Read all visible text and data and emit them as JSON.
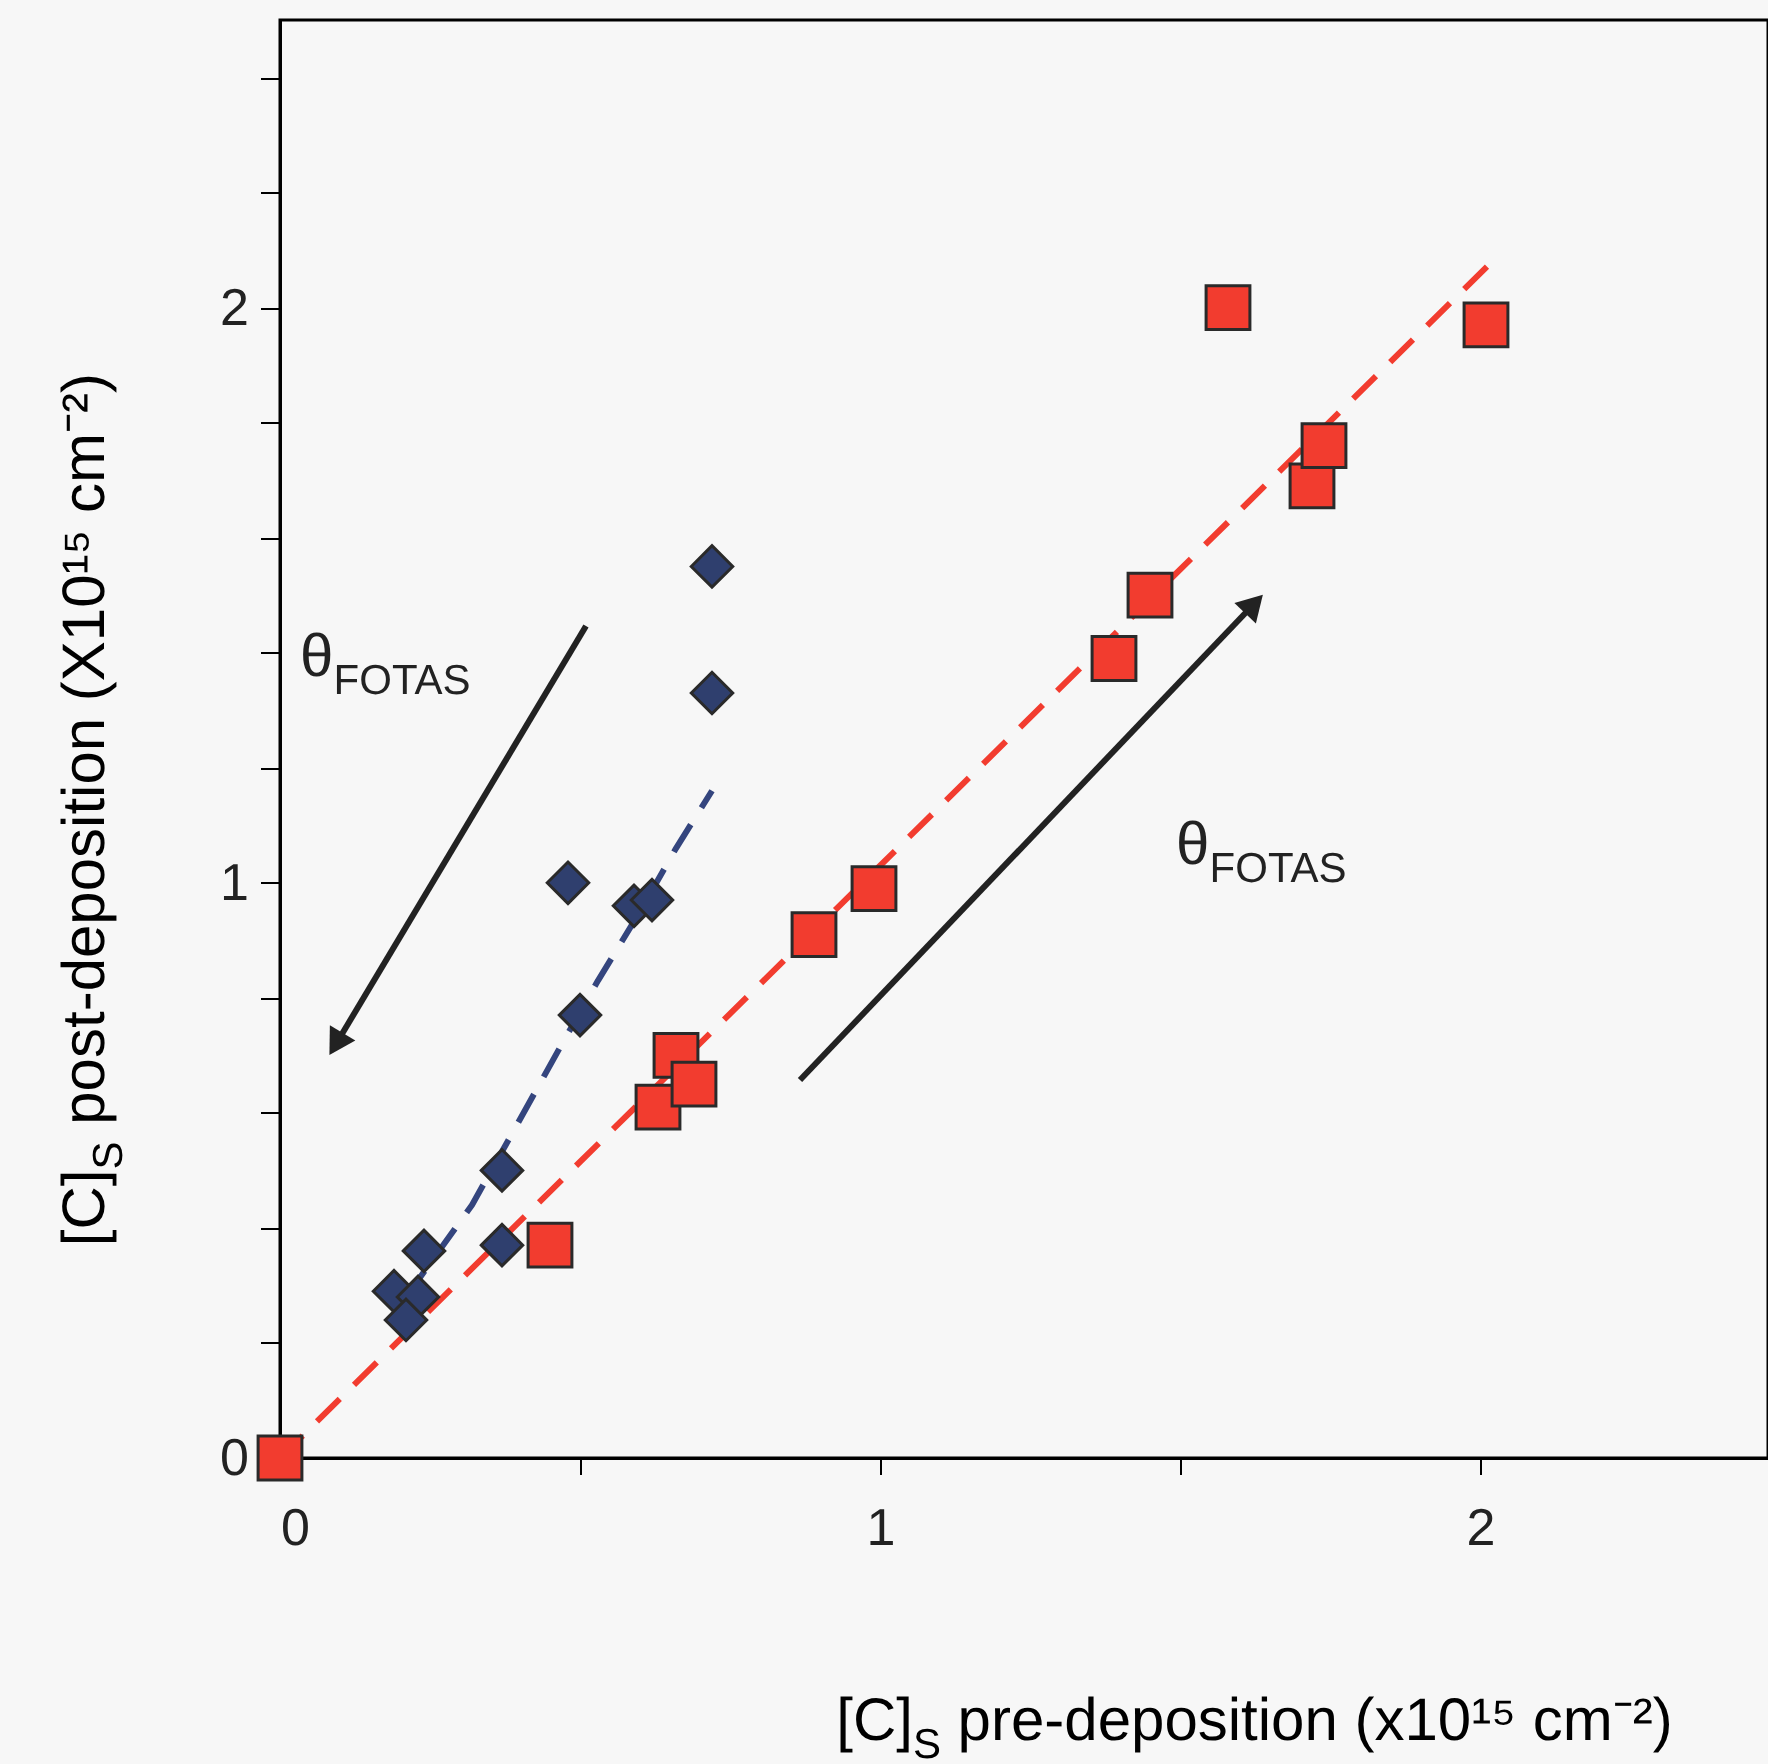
{
  "chart_data": {
    "type": "scatter",
    "xlabel": "[C]$_{S}$ pre-deposition (x10¹⁵ cm⁻²)",
    "ylabel": "[C]$_{S}$ post-deposition (X10¹⁵ cm⁻²)",
    "xlim": [
      0,
      2.48
    ],
    "ylim": [
      0,
      2.5
    ],
    "xticks": [
      0,
      {
        "value": 0.5,
        "label": null
      },
      1,
      {
        "value": 1.5,
        "label": null
      },
      2
    ],
    "yticks": [
      0,
      {
        "value": 0.2,
        "label": null
      },
      {
        "value": 0.4,
        "label": null
      },
      {
        "value": 0.6,
        "label": null
      },
      {
        "value": 0.8,
        "label": null
      },
      1,
      {
        "value": 1.2,
        "label": null
      },
      {
        "value": 1.4,
        "label": null
      },
      {
        "value": 1.6,
        "label": null
      },
      {
        "value": 1.8,
        "label": null
      },
      2,
      {
        "value": 2.2,
        "label": null
      },
      {
        "value": 2.4,
        "label": null
      }
    ],
    "grid": false,
    "annotations": [
      "θ$_{FOTAS}$",
      "θ$_{FOTAS}$"
    ],
    "series": [
      {
        "type": "line",
        "line_style": "dashed",
        "marker": "none",
        "color": "#f23c2f",
        "x": [
          0,
          2.02
        ],
        "values": [
          0,
          2.08
        ]
      },
      {
        "type": "line",
        "line_style": "dashed",
        "marker": "none",
        "color": "#34457e",
        "x": [
          0.21,
          0.32,
          0.39,
          0.47,
          0.53,
          0.6,
          0.66,
          0.72
        ],
        "values": [
          0.28,
          0.44,
          0.57,
          0.72,
          0.83,
          0.95,
          1.06,
          1.16
        ]
      },
      {
        "marker": "diamond",
        "color": "#2f3f6e",
        "x": [
          0.72,
          0.72,
          0.48,
          0.59,
          0.62,
          0.5,
          0.37,
          0.37,
          0.24,
          0.19,
          0.23,
          0.21
        ],
        "values": [
          1.55,
          1.33,
          1.0,
          0.96,
          0.97,
          0.77,
          0.5,
          0.37,
          0.36,
          0.29,
          0.28,
          0.24
        ]
      },
      {
        "marker": "square",
        "color": "#f23c2f",
        "x": [
          0,
          0.45,
          0.63,
          0.66,
          0.69,
          0.89,
          0.99,
          1.39,
          1.45,
          1.58,
          1.72,
          1.74,
          2.01
        ],
        "values": [
          0,
          0.37,
          0.61,
          0.7,
          0.65,
          0.91,
          0.99,
          1.39,
          1.5,
          2.0,
          1.69,
          1.76,
          1.97
        ]
      }
    ]
  }
}
